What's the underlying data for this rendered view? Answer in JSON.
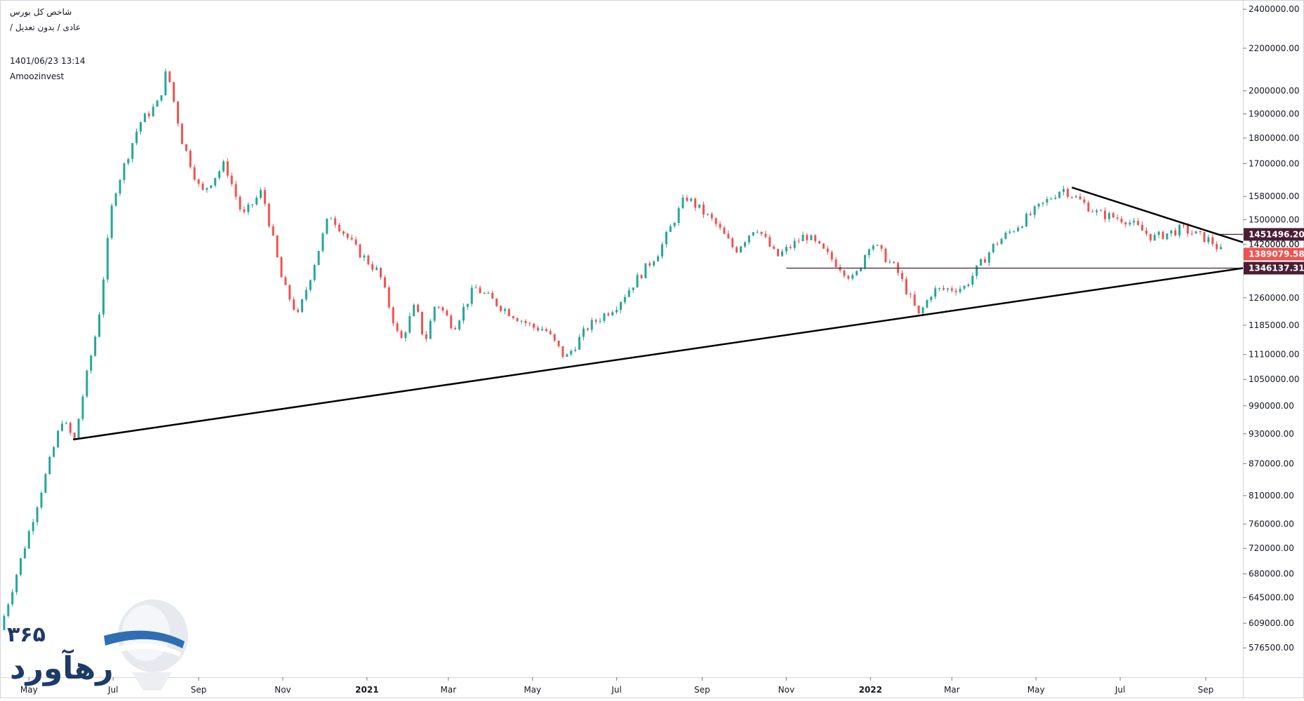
{
  "header": {
    "symbol": "شاخص کل بورس",
    "mode": "عادی / بدون تعدیل /",
    "datetime": "1401/06/23 13:14",
    "source": "Amoozinvest"
  },
  "logo": {
    "text": "رهآورد",
    "number": "۳۶۵",
    "icon": "balloon-logo-icon"
  },
  "colors": {
    "up": "#26a69a",
    "down": "#ef5350",
    "trendline": "#000000",
    "level_line": "#4a1f35",
    "label_dark": "#4a1f35",
    "label_current": "#ef5350"
  },
  "chart_data": {
    "type": "candlestick",
    "y_scale": "log",
    "ylim": [
      540000,
      2450000
    ],
    "y_ticks": [
      {
        "value": 576500,
        "label": "576500.00"
      },
      {
        "value": 609000,
        "label": "609000.00"
      },
      {
        "value": 645000,
        "label": "645000.00"
      },
      {
        "value": 680000,
        "label": "680000.00"
      },
      {
        "value": 720000,
        "label": "720000.00"
      },
      {
        "value": 760000,
        "label": "760000.00"
      },
      {
        "value": 810000,
        "label": "810000.00"
      },
      {
        "value": 870000,
        "label": "870000.00"
      },
      {
        "value": 930000,
        "label": "930000.00"
      },
      {
        "value": 990000,
        "label": "990000.00"
      },
      {
        "value": 1050000,
        "label": "1050000.00"
      },
      {
        "value": 1110000,
        "label": "1110000.00"
      },
      {
        "value": 1185000,
        "label": "1185000.00"
      },
      {
        "value": 1260000,
        "label": "1260000.00"
      },
      {
        "value": 1420000,
        "label": "1420000.00"
      },
      {
        "value": 1500000,
        "label": "1500000.00"
      },
      {
        "value": 1580000,
        "label": "1580000.00"
      },
      {
        "value": 1700000,
        "label": "1700000.00"
      },
      {
        "value": 1800000,
        "label": "1800000.00"
      },
      {
        "value": 1900000,
        "label": "1900000.00"
      },
      {
        "value": 2000000,
        "label": "2000000.00"
      },
      {
        "value": 2200000,
        "label": "2200000.00"
      },
      {
        "value": 2400000,
        "label": "2400000.00"
      }
    ],
    "x_ticks": [
      {
        "date": "2020-05-01",
        "label": "May",
        "bold": false
      },
      {
        "date": "2020-07-01",
        "label": "Jul",
        "bold": false
      },
      {
        "date": "2020-09-01",
        "label": "Sep",
        "bold": false
      },
      {
        "date": "2020-11-01",
        "label": "Nov",
        "bold": false
      },
      {
        "date": "2021-01-01",
        "label": "2021",
        "bold": true
      },
      {
        "date": "2021-03-01",
        "label": "Mar",
        "bold": false
      },
      {
        "date": "2021-05-01",
        "label": "May",
        "bold": false
      },
      {
        "date": "2021-07-01",
        "label": "Jul",
        "bold": false
      },
      {
        "date": "2021-09-01",
        "label": "Sep",
        "bold": false
      },
      {
        "date": "2021-11-01",
        "label": "Nov",
        "bold": false
      },
      {
        "date": "2022-01-01",
        "label": "2022",
        "bold": true
      },
      {
        "date": "2022-03-01",
        "label": "Mar",
        "bold": false
      },
      {
        "date": "2022-05-01",
        "label": "May",
        "bold": false
      },
      {
        "date": "2022-07-01",
        "label": "Jul",
        "bold": false
      },
      {
        "date": "2022-09-01",
        "label": "Sep",
        "bold": false
      }
    ],
    "xlim": [
      "2020-04-10",
      "2022-09-28"
    ],
    "price_path": [
      [
        "2020-04-10",
        600000
      ],
      [
        "2020-05-25",
        960000
      ],
      [
        "2020-06-03",
        915000
      ],
      [
        "2020-06-10",
        1030000
      ],
      [
        "2020-06-20",
        1190000
      ],
      [
        "2020-07-01",
        1580000
      ],
      [
        "2020-07-20",
        1860000
      ],
      [
        "2020-08-03",
        1950000
      ],
      [
        "2020-08-09",
        2100000
      ],
      [
        "2020-08-20",
        1790000
      ],
      [
        "2020-09-03",
        1590000
      ],
      [
        "2020-09-20",
        1700000
      ],
      [
        "2020-10-03",
        1510000
      ],
      [
        "2020-10-17",
        1600000
      ],
      [
        "2020-11-01",
        1300000
      ],
      [
        "2020-11-12",
        1210000
      ],
      [
        "2020-12-05",
        1520000
      ],
      [
        "2020-12-25",
        1400000
      ],
      [
        "2021-01-10",
        1330000
      ],
      [
        "2021-01-25",
        1140000
      ],
      [
        "2021-02-05",
        1240000
      ],
      [
        "2021-02-12",
        1140000
      ],
      [
        "2021-02-20",
        1250000
      ],
      [
        "2021-03-05",
        1180000
      ],
      [
        "2021-03-20",
        1290000
      ],
      [
        "2021-04-10",
        1230000
      ],
      [
        "2021-05-01",
        1180000
      ],
      [
        "2021-05-10",
        1175000
      ],
      [
        "2021-05-25",
        1100000
      ],
      [
        "2021-06-10",
        1180000
      ],
      [
        "2021-07-01",
        1240000
      ],
      [
        "2021-08-01",
        1400000
      ],
      [
        "2021-08-20",
        1580000
      ],
      [
        "2021-09-10",
        1490000
      ],
      [
        "2021-09-25",
        1400000
      ],
      [
        "2021-10-10",
        1480000
      ],
      [
        "2021-10-25",
        1380000
      ],
      [
        "2021-11-15",
        1450000
      ],
      [
        "2021-12-10",
        1350000
      ],
      [
        "2021-12-20",
        1310000
      ],
      [
        "2022-01-01",
        1430000
      ],
      [
        "2022-01-20",
        1340000
      ],
      [
        "2022-02-05",
        1210000
      ],
      [
        "2022-02-15",
        1280000
      ],
      [
        "2022-03-10",
        1290000
      ],
      [
        "2022-04-01",
        1420000
      ],
      [
        "2022-04-15",
        1470000
      ],
      [
        "2022-05-20",
        1610000
      ],
      [
        "2022-06-15",
        1520000
      ],
      [
        "2022-07-05",
        1500000
      ],
      [
        "2022-07-25",
        1440000
      ],
      [
        "2022-08-15",
        1470000
      ],
      [
        "2022-09-05",
        1430000
      ],
      [
        "2022-09-14",
        1389080
      ]
    ],
    "trendlines": [
      {
        "name": "lower-trendline",
        "from": [
          "2020-06-02",
          918000
        ],
        "to": [
          "2022-09-28",
          1346137.31
        ]
      },
      {
        "name": "upper-trendline",
        "from": [
          "2022-05-27",
          1612000
        ],
        "to": [
          "2022-09-28",
          1426000
        ]
      }
    ],
    "horizontal_levels": [
      {
        "name": "resistance-level",
        "value": 1451496.2,
        "from": "2022-09-08",
        "label": "1451496.20",
        "style": "dark"
      },
      {
        "name": "support-level",
        "value": 1346137.31,
        "from": "2021-11-01",
        "label": "1346137.31",
        "style": "dark"
      }
    ],
    "current_price": {
      "value": 1389079.58,
      "label": "1389079.58"
    },
    "partial_tick": {
      "value": 1420000,
      "label": "1420000.00"
    }
  }
}
